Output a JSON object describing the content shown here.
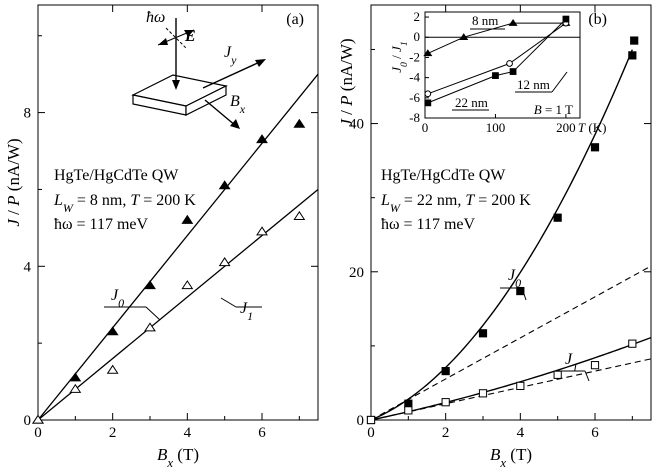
{
  "chart_data": [
    {
      "type": "scatter",
      "panel_label": "(a)",
      "xlabel": "B_x (T)",
      "ylabel": "J / P (nA/W)",
      "xlim": [
        0,
        7.5
      ],
      "ylim": [
        0,
        10.8
      ],
      "xticks": [
        "0",
        "2",
        "4",
        "6"
      ],
      "yticks": [
        "0",
        "4",
        "8"
      ],
      "annotations": [
        "HgTe/HgCdTe QW",
        "L_W = 8 nm, T = 200 K",
        "ħω = 117 meV"
      ],
      "inset_labels": [
        "ħω",
        "E",
        "J_y",
        "B_x"
      ],
      "series": [
        {
          "name": "J_0",
          "marker": "filled-triangle",
          "x": [
            0,
            1,
            2,
            3,
            4,
            5,
            6,
            7
          ],
          "y": [
            0,
            1.1,
            2.3,
            3.5,
            5.2,
            6.1,
            7.3,
            7.7
          ],
          "fit_slope": 1.2
        },
        {
          "name": "J_1",
          "marker": "open-triangle",
          "x": [
            0,
            1,
            2,
            3,
            4,
            5,
            6,
            7
          ],
          "y": [
            0,
            0.8,
            1.3,
            2.4,
            3.5,
            4.1,
            4.9,
            5.3
          ],
          "fit_slope": 0.8
        }
      ]
    },
    {
      "type": "scatter",
      "panel_label": "(b)",
      "xlabel": "B_x (T)",
      "ylabel": "J / P (nA/W)",
      "xlim": [
        0,
        7.5
      ],
      "ylim": [
        0,
        56
      ],
      "xticks": [
        "0",
        "2",
        "4",
        "6"
      ],
      "yticks": [
        "0",
        "20",
        "40"
      ],
      "annotations": [
        "HgTe/HgCdTe QW",
        "L_W = 22 nm, T = 200 K",
        "ħω = 117 meV"
      ],
      "series": [
        {
          "name": "J_0",
          "marker": "filled-square",
          "x": [
            0,
            1,
            2,
            3,
            4,
            5,
            6,
            7,
            7.05
          ],
          "y": [
            0,
            2.2,
            6.6,
            11.7,
            17.4,
            27.3,
            36.8,
            49.2,
            51.2
          ]
        },
        {
          "name": "J_1",
          "marker": "open-square",
          "x": [
            0,
            1,
            2,
            3,
            4,
            5,
            6,
            7
          ],
          "y": [
            0,
            1.3,
            2.4,
            3.6,
            4.6,
            6.1,
            7.4,
            10.3
          ]
        }
      ],
      "inset": {
        "ylabel": "J_0 / J_1",
        "xlabel": "T (K)",
        "xlim": [
          0,
          220
        ],
        "ylim": [
          -8,
          2.5
        ],
        "xticks": [
          "0",
          "100",
          "200"
        ],
        "yticks": [
          "2",
          "0",
          "-2",
          "-4",
          "-6",
          "-8"
        ],
        "condition": "B = 1 T",
        "series": [
          {
            "name": "8 nm",
            "marker": "filled-triangle",
            "x": [
              4,
              55,
              125,
              200
            ],
            "y": [
              -1.6,
              0,
              1.4,
              1.4
            ]
          },
          {
            "name": "12 nm",
            "marker": "open-circle",
            "x": [
              4,
              120,
              200
            ],
            "y": [
              -5.6,
              -2.6,
              1.4
            ]
          },
          {
            "name": "22 nm",
            "marker": "filled-square",
            "x": [
              4,
              100,
              125,
              200
            ],
            "y": [
              -6.5,
              -3.8,
              -3.4,
              1.8
            ]
          }
        ]
      }
    }
  ]
}
